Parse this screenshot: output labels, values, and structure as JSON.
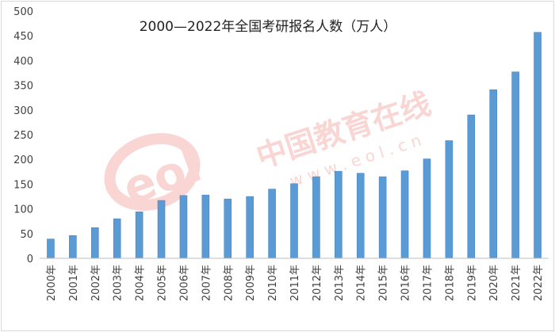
{
  "chart_data": {
    "type": "bar",
    "title": "2000—2022年全国考研报名人数（万人）",
    "xlabel": "",
    "ylabel": "",
    "categories": [
      "2000年",
      "2001年",
      "2002年",
      "2003年",
      "2004年",
      "2005年",
      "2006年",
      "2007年",
      "2008年",
      "2009年",
      "2010年",
      "2011年",
      "2012年",
      "2013年",
      "2014年",
      "2015年",
      "2016年",
      "2017年",
      "2018年",
      "2019年",
      "2020年",
      "2021年",
      "2022年"
    ],
    "values": [
      39,
      46,
      62,
      80,
      94,
      117,
      127,
      128,
      120,
      125,
      140,
      151,
      165,
      176,
      172,
      165,
      177,
      201,
      238,
      290,
      341,
      377,
      457
    ],
    "ylim": [
      0,
      500
    ],
    "yticks": [
      0,
      50,
      100,
      150,
      200,
      250,
      300,
      350,
      400,
      450,
      500
    ],
    "grid": false,
    "bar_color": "#5b9bd5"
  },
  "watermark": {
    "logo": "eol",
    "text": "中国教育在线",
    "url": "w w w . e o l . c n"
  }
}
